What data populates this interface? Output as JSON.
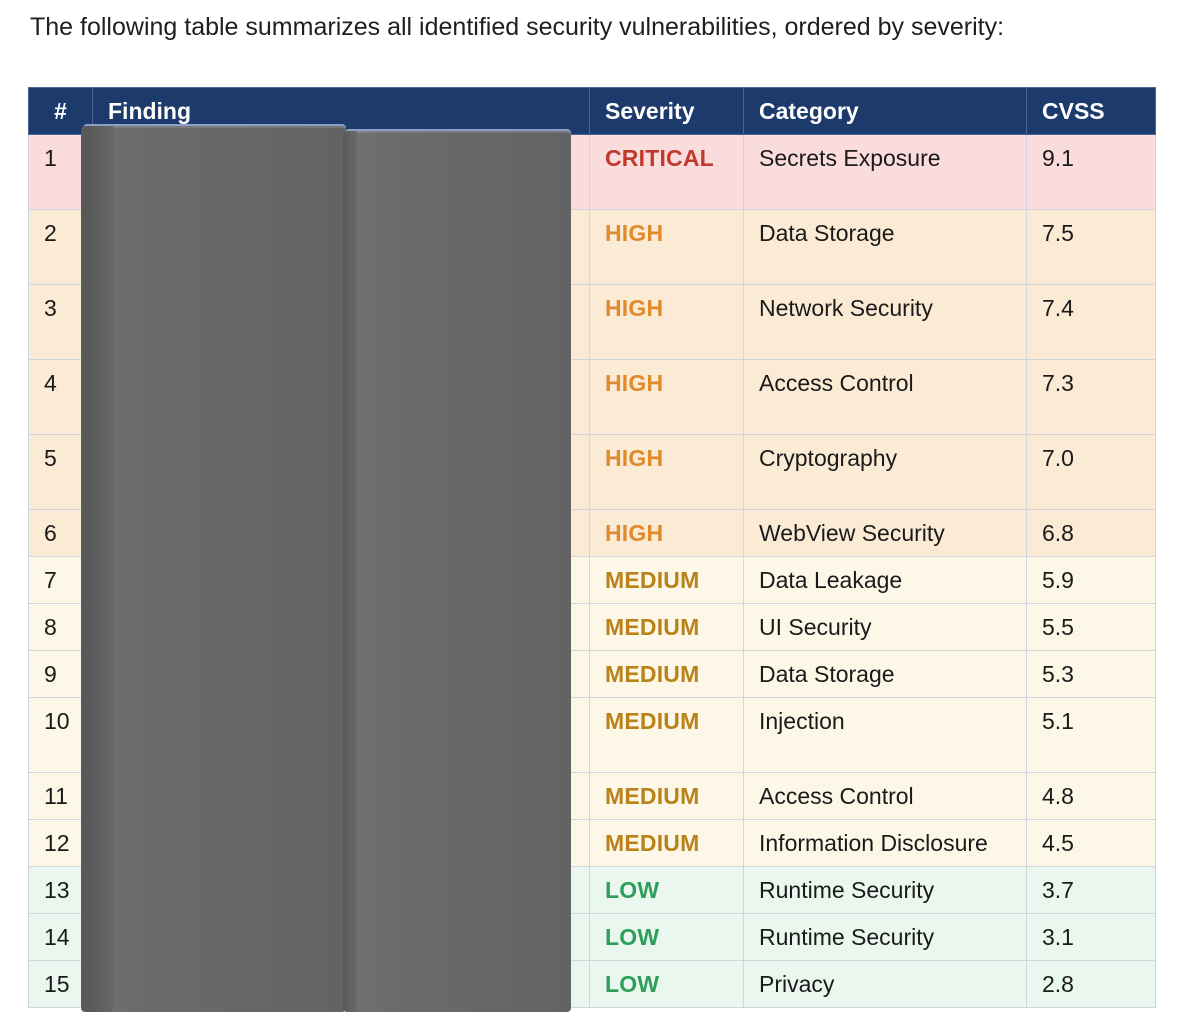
{
  "intro_text": "The following table summarizes all identified security vulnerabilities, ordered by severity:",
  "table": {
    "headers": {
      "num": "#",
      "finding": "Finding",
      "severity": "Severity",
      "category": "Category",
      "cvss": "CVSS"
    },
    "rows": [
      {
        "num": "1",
        "finding": "",
        "severity": "CRITICAL",
        "category": "Secrets Exposure",
        "cvss": "9.1"
      },
      {
        "num": "2",
        "finding": "",
        "severity": "HIGH",
        "category": "Data Storage",
        "cvss": "7.5"
      },
      {
        "num": "3",
        "finding": "",
        "severity": "HIGH",
        "category": "Network Security",
        "cvss": "7.4"
      },
      {
        "num": "4",
        "finding": "",
        "severity": "HIGH",
        "category": "Access Control",
        "cvss": "7.3"
      },
      {
        "num": "5",
        "finding": "",
        "severity": "HIGH",
        "category": "Cryptography",
        "cvss": "7.0"
      },
      {
        "num": "6",
        "finding": "",
        "severity": "HIGH",
        "category": "WebView Security",
        "cvss": "6.8"
      },
      {
        "num": "7",
        "finding": "",
        "severity": "MEDIUM",
        "category": "Data Leakage",
        "cvss": "5.9"
      },
      {
        "num": "8",
        "finding": "",
        "severity": "MEDIUM",
        "category": "UI Security",
        "cvss": "5.5"
      },
      {
        "num": "9",
        "finding": "",
        "severity": "MEDIUM",
        "category": "Data Storage",
        "cvss": "5.3"
      },
      {
        "num": "10",
        "finding": "",
        "severity": "MEDIUM",
        "category": "Injection",
        "cvss": "5.1"
      },
      {
        "num": "11",
        "finding": "",
        "severity": "MEDIUM",
        "category": "Access Control",
        "cvss": "4.8"
      },
      {
        "num": "12",
        "finding": "",
        "severity": "MEDIUM",
        "category": "Information Disclosure",
        "cvss": "4.5"
      },
      {
        "num": "13",
        "finding": "",
        "severity": "LOW",
        "category": "Runtime Security",
        "cvss": "3.7"
      },
      {
        "num": "14",
        "finding": "",
        "severity": "LOW",
        "category": "Runtime Security",
        "cvss": "3.1"
      },
      {
        "num": "15",
        "finding": "",
        "severity": "LOW",
        "category": "Privacy",
        "cvss": "2.8"
      }
    ]
  },
  "colors": {
    "header_bg": "#1c3a6b",
    "critical_row": "#fbdcdc",
    "high_row": "#fcebd4",
    "medium_row": "#fdf7e7",
    "low_row": "#eaf7ee",
    "critical_text": "#c0392b",
    "high_text": "#df8a2c",
    "medium_text": "#b9821b",
    "low_text": "#2e9e5b",
    "occluder": "#6b6b6b"
  }
}
